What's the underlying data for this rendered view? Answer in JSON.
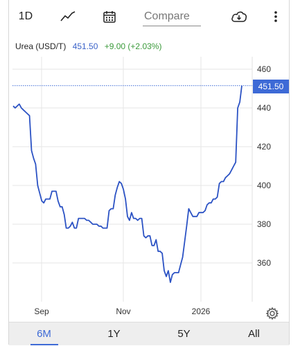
{
  "toolbar": {
    "interval_label": "1D",
    "compare_label": "Compare"
  },
  "legend": {
    "name": "Urea (USD/T)",
    "price": "451.50",
    "change": "+9.00 (+2.03%)"
  },
  "last_price_badge": "451.50",
  "periods": [
    "6M",
    "1Y",
    "5Y",
    "All"
  ],
  "active_period": "6M",
  "colors": {
    "line": "#2b52c4",
    "accent": "#3d6ad6",
    "change_up": "#3a9a3a"
  },
  "chart_data": {
    "type": "line",
    "series": [
      {
        "name": "Urea (USD/T)",
        "values": [
          441,
          440,
          441,
          442,
          440,
          439,
          438,
          437,
          436,
          418,
          414,
          411,
          400,
          396,
          392,
          391,
          393,
          393,
          393,
          397,
          397,
          397,
          392,
          389,
          389,
          385,
          378,
          378,
          379,
          381,
          378,
          378,
          383,
          383,
          383,
          383,
          382,
          382,
          381,
          380,
          380,
          380,
          379,
          379,
          378,
          378,
          378,
          387,
          388,
          388,
          395,
          399,
          402,
          401,
          398,
          393,
          384,
          382,
          386,
          383,
          383,
          382,
          383,
          383,
          374,
          373,
          374,
          374,
          369,
          369,
          372,
          366,
          366,
          365,
          356,
          353,
          356,
          350,
          354,
          355,
          355,
          355,
          359,
          363,
          371,
          379,
          388,
          386,
          384,
          384,
          384,
          386,
          386,
          386,
          387,
          390,
          391,
          391,
          393,
          393,
          394,
          401,
          402,
          402,
          404,
          405,
          406,
          408,
          410,
          412,
          440,
          443,
          451.5
        ]
      }
    ],
    "x_ticks": [
      "Sep",
      "Nov",
      "2026"
    ],
    "y_ticks": [
      360,
      380,
      400,
      420,
      440,
      460
    ],
    "ylim": [
      345,
      465
    ],
    "last_value": 451.5,
    "grid": true
  }
}
